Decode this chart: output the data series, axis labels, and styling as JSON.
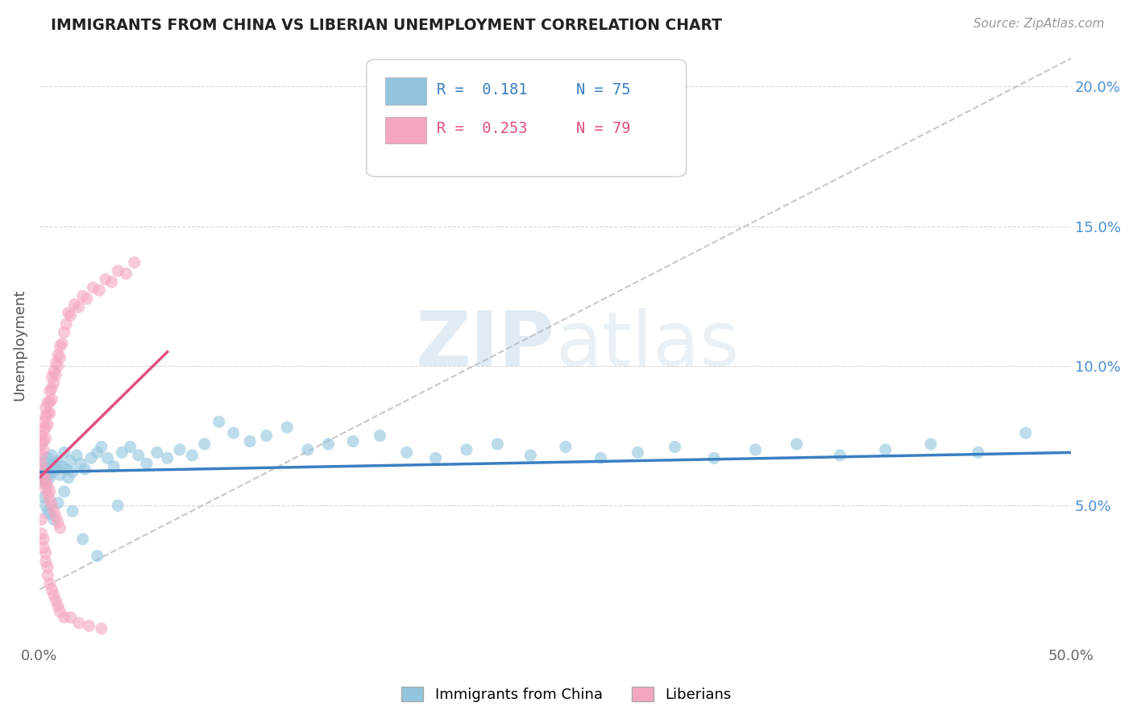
{
  "title": "IMMIGRANTS FROM CHINA VS LIBERIAN UNEMPLOYMENT CORRELATION CHART",
  "source": "Source: ZipAtlas.com",
  "ylabel": "Unemployment",
  "watermark": "ZIPatlas",
  "xlim": [
    0.0,
    0.5
  ],
  "ylim": [
    0.0,
    0.215
  ],
  "yticks": [
    0.05,
    0.1,
    0.15,
    0.2
  ],
  "ytick_labels": [
    "5.0%",
    "10.0%",
    "15.0%",
    "20.0%"
  ],
  "china_color": "#92C5DE",
  "liberia_color": "#F4A6C0",
  "china_line_color": "#3A7FC1",
  "liberia_line_color": "#E05080",
  "legend_R_china": "R =  0.181",
  "legend_N_china": "N = 75",
  "legend_R_liberia": "R =  0.253",
  "legend_N_liberia": "N = 79",
  "background_color": "#ffffff",
  "grid_color": "#cccccc",
  "china_scatter_x": [
    0.001,
    0.002,
    0.002,
    0.003,
    0.003,
    0.004,
    0.004,
    0.005,
    0.005,
    0.006,
    0.006,
    0.007,
    0.008,
    0.009,
    0.01,
    0.011,
    0.012,
    0.013,
    0.014,
    0.015,
    0.016,
    0.018,
    0.02,
    0.022,
    0.025,
    0.028,
    0.03,
    0.033,
    0.036,
    0.04,
    0.044,
    0.048,
    0.052,
    0.057,
    0.062,
    0.068,
    0.074,
    0.08,
    0.087,
    0.094,
    0.102,
    0.11,
    0.12,
    0.13,
    0.14,
    0.152,
    0.165,
    0.178,
    0.192,
    0.207,
    0.222,
    0.238,
    0.255,
    0.272,
    0.29,
    0.308,
    0.327,
    0.347,
    0.367,
    0.388,
    0.41,
    0.432,
    0.455,
    0.478,
    0.002,
    0.003,
    0.004,
    0.005,
    0.007,
    0.009,
    0.012,
    0.016,
    0.021,
    0.028,
    0.038
  ],
  "china_scatter_y": [
    0.062,
    0.059,
    0.066,
    0.063,
    0.058,
    0.067,
    0.061,
    0.064,
    0.06,
    0.068,
    0.062,
    0.065,
    0.063,
    0.066,
    0.061,
    0.064,
    0.069,
    0.063,
    0.06,
    0.066,
    0.062,
    0.068,
    0.065,
    0.063,
    0.067,
    0.069,
    0.071,
    0.067,
    0.064,
    0.069,
    0.071,
    0.068,
    0.065,
    0.069,
    0.067,
    0.07,
    0.068,
    0.072,
    0.08,
    0.076,
    0.073,
    0.075,
    0.078,
    0.07,
    0.072,
    0.073,
    0.075,
    0.069,
    0.067,
    0.07,
    0.072,
    0.068,
    0.071,
    0.067,
    0.069,
    0.071,
    0.067,
    0.07,
    0.072,
    0.068,
    0.07,
    0.072,
    0.069,
    0.076,
    0.053,
    0.05,
    0.048,
    0.047,
    0.045,
    0.051,
    0.055,
    0.048,
    0.038,
    0.032,
    0.05
  ],
  "liberia_scatter_x": [
    0.001,
    0.001,
    0.001,
    0.001,
    0.002,
    0.002,
    0.002,
    0.002,
    0.003,
    0.003,
    0.003,
    0.003,
    0.004,
    0.004,
    0.004,
    0.005,
    0.005,
    0.005,
    0.006,
    0.006,
    0.006,
    0.007,
    0.007,
    0.008,
    0.008,
    0.009,
    0.009,
    0.01,
    0.01,
    0.011,
    0.012,
    0.013,
    0.014,
    0.015,
    0.017,
    0.019,
    0.021,
    0.023,
    0.026,
    0.029,
    0.032,
    0.035,
    0.038,
    0.042,
    0.046,
    0.001,
    0.001,
    0.002,
    0.002,
    0.003,
    0.003,
    0.004,
    0.004,
    0.005,
    0.005,
    0.006,
    0.007,
    0.008,
    0.009,
    0.01,
    0.001,
    0.001,
    0.002,
    0.002,
    0.003,
    0.003,
    0.004,
    0.004,
    0.005,
    0.006,
    0.007,
    0.008,
    0.009,
    0.01,
    0.012,
    0.015,
    0.019,
    0.024,
    0.03
  ],
  "liberia_scatter_y": [
    0.065,
    0.068,
    0.072,
    0.075,
    0.07,
    0.073,
    0.077,
    0.08,
    0.074,
    0.078,
    0.082,
    0.085,
    0.079,
    0.083,
    0.087,
    0.083,
    0.087,
    0.091,
    0.088,
    0.092,
    0.096,
    0.094,
    0.098,
    0.097,
    0.101,
    0.1,
    0.104,
    0.103,
    0.107,
    0.108,
    0.112,
    0.115,
    0.119,
    0.118,
    0.122,
    0.121,
    0.125,
    0.124,
    0.128,
    0.127,
    0.131,
    0.13,
    0.134,
    0.133,
    0.137,
    0.06,
    0.063,
    0.058,
    0.061,
    0.056,
    0.059,
    0.054,
    0.057,
    0.052,
    0.055,
    0.05,
    0.048,
    0.046,
    0.044,
    0.042,
    0.045,
    0.04,
    0.038,
    0.035,
    0.033,
    0.03,
    0.028,
    0.025,
    0.022,
    0.02,
    0.018,
    0.016,
    0.014,
    0.012,
    0.01,
    0.01,
    0.008,
    0.007,
    0.006
  ],
  "china_trend_x": [
    0.0,
    0.5
  ],
  "china_trend_y": [
    0.062,
    0.069
  ],
  "liberia_trend_x": [
    0.0,
    0.062
  ],
  "liberia_trend_y": [
    0.06,
    0.105
  ],
  "diag_line_x": [
    0.0,
    0.5
  ],
  "diag_line_y": [
    0.02,
    0.21
  ],
  "right_ytick_labels": [
    "5.0%",
    "10.0%",
    "15.0%",
    "20.0%"
  ]
}
